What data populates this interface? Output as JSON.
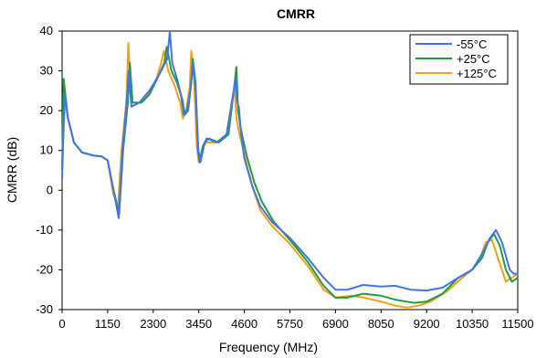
{
  "chart_data": {
    "type": "line",
    "title": "CMRR",
    "xlabel": "Frequency (MHz)",
    "ylabel": "CMRR (dB)",
    "xlim": [
      0,
      11500
    ],
    "ylim": [
      -30,
      40
    ],
    "xticks": [
      0,
      1150,
      2300,
      3450,
      4600,
      5750,
      6900,
      8050,
      9200,
      10350,
      11500
    ],
    "yticks": [
      -30,
      -20,
      -10,
      0,
      10,
      20,
      30,
      40
    ],
    "grid": false,
    "legend_position": "top-right",
    "series": [
      {
        "name": "-55°C",
        "color": "#4472f0",
        "points": [
          [
            0,
            3
          ],
          [
            60,
            24
          ],
          [
            150,
            18
          ],
          [
            300,
            12
          ],
          [
            500,
            9.5
          ],
          [
            800,
            8.7
          ],
          [
            1000,
            8.5
          ],
          [
            1150,
            7.5
          ],
          [
            1280,
            1
          ],
          [
            1430,
            -7
          ],
          [
            1520,
            10
          ],
          [
            1630,
            22
          ],
          [
            1680,
            30
          ],
          [
            1750,
            21
          ],
          [
            1950,
            22
          ],
          [
            2200,
            25
          ],
          [
            2450,
            29
          ],
          [
            2650,
            33
          ],
          [
            2700,
            38
          ],
          [
            2720,
            40
          ],
          [
            2780,
            32
          ],
          [
            2900,
            28
          ],
          [
            3000,
            24
          ],
          [
            3070,
            19
          ],
          [
            3150,
            20
          ],
          [
            3250,
            26
          ],
          [
            3310,
            32
          ],
          [
            3370,
            27
          ],
          [
            3430,
            10
          ],
          [
            3470,
            7
          ],
          [
            3550,
            11
          ],
          [
            3650,
            13
          ],
          [
            3900,
            12
          ],
          [
            4150,
            14
          ],
          [
            4300,
            23
          ],
          [
            4380,
            28
          ],
          [
            4420,
            22
          ],
          [
            4460,
            21
          ],
          [
            4520,
            14
          ],
          [
            4600,
            8
          ],
          [
            4800,
            1
          ],
          [
            5000,
            -4
          ],
          [
            5300,
            -8
          ],
          [
            5750,
            -12
          ],
          [
            6200,
            -17
          ],
          [
            6600,
            -22
          ],
          [
            6900,
            -25
          ],
          [
            7200,
            -25
          ],
          [
            7600,
            -23.8
          ],
          [
            8050,
            -24.2
          ],
          [
            8400,
            -24
          ],
          [
            8800,
            -25
          ],
          [
            9200,
            -25.2
          ],
          [
            9600,
            -24.5
          ],
          [
            10000,
            -22
          ],
          [
            10350,
            -20
          ],
          [
            10600,
            -16
          ],
          [
            10800,
            -12
          ],
          [
            10950,
            -10
          ],
          [
            11100,
            -13
          ],
          [
            11300,
            -20
          ],
          [
            11400,
            -21
          ],
          [
            11500,
            -21
          ]
        ]
      },
      {
        "name": "+25°C",
        "color": "#1f9e3e",
        "points": [
          [
            0,
            5
          ],
          [
            40,
            28
          ],
          [
            150,
            18
          ],
          [
            300,
            12
          ],
          [
            500,
            9.5
          ],
          [
            800,
            8.7
          ],
          [
            1000,
            8.5
          ],
          [
            1150,
            7.5
          ],
          [
            1300,
            0
          ],
          [
            1440,
            -6
          ],
          [
            1540,
            10
          ],
          [
            1660,
            22
          ],
          [
            1710,
            32
          ],
          [
            1780,
            22
          ],
          [
            2000,
            22
          ],
          [
            2200,
            24
          ],
          [
            2400,
            28
          ],
          [
            2580,
            32
          ],
          [
            2640,
            36
          ],
          [
            2760,
            30
          ],
          [
            2900,
            27
          ],
          [
            3030,
            23
          ],
          [
            3100,
            19
          ],
          [
            3180,
            20
          ],
          [
            3250,
            26
          ],
          [
            3300,
            33
          ],
          [
            3370,
            25
          ],
          [
            3440,
            10
          ],
          [
            3490,
            7
          ],
          [
            3600,
            12
          ],
          [
            3700,
            13
          ],
          [
            3950,
            12
          ],
          [
            4200,
            14
          ],
          [
            4320,
            24
          ],
          [
            4400,
            31
          ],
          [
            4440,
            20
          ],
          [
            4500,
            16
          ],
          [
            4560,
            13
          ],
          [
            4650,
            9
          ],
          [
            4850,
            2
          ],
          [
            5050,
            -3
          ],
          [
            5350,
            -8
          ],
          [
            5750,
            -12.5
          ],
          [
            6200,
            -18
          ],
          [
            6600,
            -24
          ],
          [
            6900,
            -27
          ],
          [
            7200,
            -27
          ],
          [
            7600,
            -26
          ],
          [
            8050,
            -26.5
          ],
          [
            8400,
            -27.5
          ],
          [
            8700,
            -28
          ],
          [
            8900,
            -28.3
          ],
          [
            9200,
            -28
          ],
          [
            9600,
            -26
          ],
          [
            10000,
            -22
          ],
          [
            10350,
            -20
          ],
          [
            10600,
            -17
          ],
          [
            10750,
            -13
          ],
          [
            10900,
            -11
          ],
          [
            11050,
            -14
          ],
          [
            11200,
            -20
          ],
          [
            11350,
            -23
          ],
          [
            11500,
            -22
          ]
        ]
      },
      {
        "name": "+125°C",
        "color": "#f5a014",
        "points": [
          [
            0,
            7
          ],
          [
            80,
            23
          ],
          [
            150,
            18
          ],
          [
            300,
            12
          ],
          [
            500,
            9.5
          ],
          [
            800,
            8.7
          ],
          [
            1000,
            8.5
          ],
          [
            1150,
            7.5
          ],
          [
            1290,
            -1
          ],
          [
            1410,
            -4
          ],
          [
            1500,
            10
          ],
          [
            1620,
            22
          ],
          [
            1670,
            37
          ],
          [
            1750,
            22
          ],
          [
            1950,
            22
          ],
          [
            2150,
            24
          ],
          [
            2350,
            27
          ],
          [
            2500,
            32
          ],
          [
            2570,
            35
          ],
          [
            2680,
            30
          ],
          [
            2850,
            26
          ],
          [
            2980,
            22
          ],
          [
            3050,
            18
          ],
          [
            3130,
            20
          ],
          [
            3220,
            26
          ],
          [
            3260,
            35
          ],
          [
            3330,
            28
          ],
          [
            3400,
            11
          ],
          [
            3450,
            7
          ],
          [
            3550,
            11
          ],
          [
            3650,
            12
          ],
          [
            3900,
            12
          ],
          [
            4150,
            14
          ],
          [
            4280,
            22
          ],
          [
            4350,
            26
          ],
          [
            4400,
            18
          ],
          [
            4480,
            14
          ],
          [
            4600,
            9
          ],
          [
            4800,
            1
          ],
          [
            5000,
            -5
          ],
          [
            5300,
            -9
          ],
          [
            5750,
            -13.5
          ],
          [
            6200,
            -19
          ],
          [
            6600,
            -25
          ],
          [
            6900,
            -27
          ],
          [
            7300,
            -26.5
          ],
          [
            7600,
            -27
          ],
          [
            8050,
            -28
          ],
          [
            8400,
            -29
          ],
          [
            8700,
            -29.5
          ],
          [
            9000,
            -29
          ],
          [
            9300,
            -28
          ],
          [
            9700,
            -25.5
          ],
          [
            10100,
            -22
          ],
          [
            10350,
            -20
          ],
          [
            10550,
            -17
          ],
          [
            10700,
            -13
          ],
          [
            10850,
            -12.5
          ],
          [
            11000,
            -17
          ],
          [
            11200,
            -23
          ],
          [
            11350,
            -22
          ],
          [
            11500,
            -21
          ]
        ]
      }
    ]
  }
}
